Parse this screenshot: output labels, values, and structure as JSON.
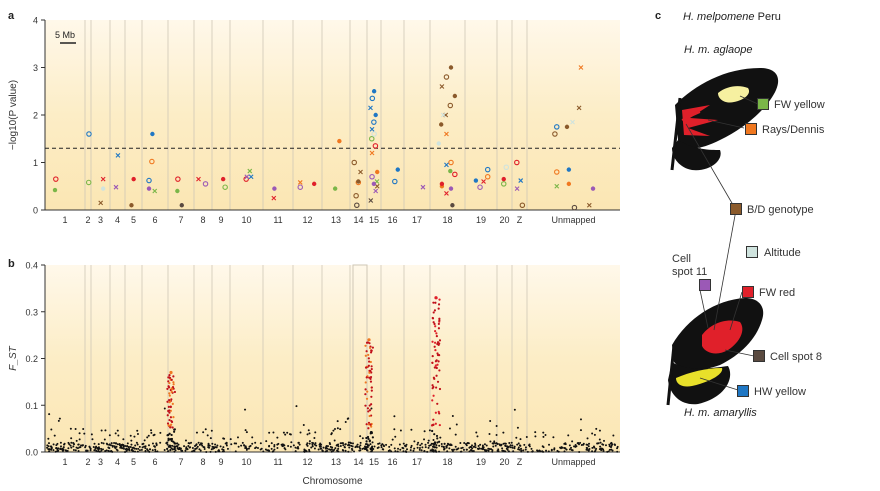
{
  "panels": {
    "a_letter": "a",
    "b_letter": "b",
    "c_letter": "c"
  },
  "colors": {
    "bg_top": "#fbe9bd",
    "bg_bottom": "#fffaf0",
    "threshold": "#222222",
    "fw_yellow": "#7ab648",
    "rays_dennis": "#f07820",
    "bd_genotype": "#8b5a2b",
    "altitude": "#cfe3de",
    "fw_red": "#e0202a",
    "cell_spot_11": "#9b59b6",
    "cell_spot_8": "#5a4a40",
    "hw_yellow": "#1f77c4"
  },
  "chart_data": [
    {
      "panel": "a",
      "type": "scatter",
      "ylabel": "−log10(P value)",
      "ylim": [
        0,
        4
      ],
      "yticks": [
        "0",
        "1",
        "2",
        "3",
        "4"
      ],
      "scale_bar": "5 Mb",
      "threshold": 1.3,
      "categories": [
        "1",
        "2",
        "3",
        "4",
        "5",
        "6",
        "7",
        "8",
        "9",
        "10",
        "11",
        "12",
        "13",
        "14",
        "15",
        "16",
        "17",
        "18",
        "19",
        "20",
        "Z",
        "Unmapped"
      ],
      "series": [
        {
          "trait": "FW yellow",
          "color": "#7ab648",
          "points": [
            [
              1,
              0.42
            ],
            [
              2,
              0.58
            ],
            [
              6,
              0.4
            ],
            [
              7,
              0.4
            ],
            [
              9,
              0.48
            ],
            [
              10,
              0.82
            ],
            [
              13,
              0.45
            ],
            [
              15,
              1.5
            ],
            [
              15,
              0.6
            ],
            [
              18,
              0.82
            ],
            [
              20,
              0.55
            ],
            [
              22,
              0.5
            ]
          ]
        },
        {
          "trait": "Rays/Dennis",
          "color": "#f07820",
          "points": [
            [
              6,
              1.02
            ],
            [
              12,
              0.58
            ],
            [
              13,
              1.45
            ],
            [
              14,
              0.58
            ],
            [
              15,
              1.2
            ],
            [
              15,
              0.8
            ],
            [
              18,
              1.0
            ],
            [
              18,
              1.6
            ],
            [
              18,
              0.5
            ],
            [
              19,
              0.7
            ],
            [
              22,
              3.0
            ],
            [
              22,
              0.55
            ],
            [
              22,
              0.8
            ]
          ]
        },
        {
          "trait": "B/D genotype",
          "color": "#8b5a2b",
          "points": [
            [
              3,
              0.15
            ],
            [
              5,
              0.1
            ],
            [
              14,
              1.0
            ],
            [
              14,
              0.8
            ],
            [
              14,
              0.6
            ],
            [
              14,
              0.3
            ],
            [
              15,
              0.5
            ],
            [
              18,
              3.0
            ],
            [
              18,
              2.8
            ],
            [
              18,
              2.6
            ],
            [
              18,
              2.4
            ],
            [
              18,
              2.2
            ],
            [
              18,
              2.0
            ],
            [
              18,
              1.8
            ],
            [
              21,
              0.1
            ],
            [
              22,
              2.15
            ],
            [
              22,
              1.75
            ],
            [
              22,
              1.6
            ],
            [
              22,
              0.1
            ]
          ]
        },
        {
          "trait": "Altitude",
          "color": "#cfe3de",
          "points": [
            [
              3,
              0.45
            ],
            [
              15,
              1.6
            ],
            [
              18,
              2.0
            ],
            [
              18,
              1.4
            ],
            [
              20,
              0.9
            ],
            [
              22,
              1.85
            ]
          ]
        },
        {
          "trait": "FW red",
          "color": "#e0202a",
          "points": [
            [
              1,
              0.65
            ],
            [
              3,
              0.65
            ],
            [
              5,
              0.65
            ],
            [
              7,
              0.65
            ],
            [
              8,
              0.65
            ],
            [
              9,
              0.65
            ],
            [
              10,
              0.65
            ],
            [
              11,
              0.25
            ],
            [
              12,
              0.55
            ],
            [
              15,
              1.35
            ],
            [
              18,
              0.35
            ],
            [
              18,
              0.55
            ],
            [
              18,
              0.75
            ],
            [
              19,
              0.6
            ],
            [
              20,
              0.65
            ],
            [
              21,
              1.0
            ]
          ]
        },
        {
          "trait": "Cell spot 11",
          "color": "#9b59b6",
          "points": [
            [
              4,
              0.48
            ],
            [
              6,
              0.45
            ],
            [
              8,
              0.55
            ],
            [
              10,
              0.7
            ],
            [
              11,
              0.45
            ],
            [
              12,
              0.48
            ],
            [
              15,
              0.4
            ],
            [
              15,
              0.55
            ],
            [
              15,
              0.7
            ],
            [
              17,
              0.48
            ],
            [
              18,
              0.45
            ],
            [
              19,
              0.48
            ],
            [
              21,
              0.45
            ],
            [
              22,
              0.45
            ]
          ]
        },
        {
          "trait": "Cell spot 8",
          "color": "#5a4a40",
          "points": [
            [
              7,
              0.1
            ],
            [
              14,
              0.1
            ],
            [
              15,
              0.2
            ],
            [
              18,
              0.1
            ],
            [
              22,
              0.05
            ]
          ]
        },
        {
          "trait": "HW yellow",
          "color": "#1f77c4",
          "points": [
            [
              2,
              1.6
            ],
            [
              4,
              1.15
            ],
            [
              6,
              1.6
            ],
            [
              6,
              0.62
            ],
            [
              10,
              0.7
            ],
            [
              15,
              2.5
            ],
            [
              15,
              2.35
            ],
            [
              15,
              2.15
            ],
            [
              15,
              2.0
            ],
            [
              15,
              1.85
            ],
            [
              15,
              1.7
            ],
            [
              16,
              0.85
            ],
            [
              16,
              0.6
            ],
            [
              18,
              0.95
            ],
            [
              19,
              0.62
            ],
            [
              19,
              0.85
            ],
            [
              21,
              0.62
            ],
            [
              22,
              0.85
            ],
            [
              22,
              1.75
            ]
          ]
        }
      ]
    },
    {
      "panel": "b",
      "type": "scatter",
      "ylabel": "F_ST",
      "ylim": [
        0,
        0.4
      ],
      "yticks": [
        "0.0",
        "0.1",
        "0.2",
        "0.3",
        "0.4"
      ],
      "xlabel": "Chromosome",
      "categories": [
        "1",
        "2",
        "3",
        "4",
        "5",
        "6",
        "7",
        "8",
        "9",
        "10",
        "11",
        "12",
        "13",
        "14",
        "15",
        "16",
        "17",
        "18",
        "19",
        "20",
        "Z",
        "Unmapped"
      ],
      "peaks": [
        {
          "chromosome": "7",
          "max": 0.17,
          "color": "#f07820"
        },
        {
          "chromosome": "15",
          "max": 0.24,
          "color": "#f07820"
        },
        {
          "chromosome": "18",
          "max": 0.33,
          "color": "#e0202a"
        }
      ]
    }
  ],
  "panel_c": {
    "title_species": "H. melpomene",
    "title_place": "Peru",
    "upper_label": "H. m. aglaope",
    "lower_label": "H. m. amaryllis",
    "legend": [
      {
        "label": "FW yellow"
      },
      {
        "label": "Rays/Dennis"
      },
      {
        "label": "B/D genotype"
      },
      {
        "label": "Altitude"
      },
      {
        "label": "FW red"
      },
      {
        "label": "Cell spot 11",
        "label2": "Cell"
      },
      {
        "label": "Cell spot 8"
      },
      {
        "label": "HW yellow"
      }
    ],
    "cell_line1": "Cell",
    "cell_line2": "spot 11"
  }
}
